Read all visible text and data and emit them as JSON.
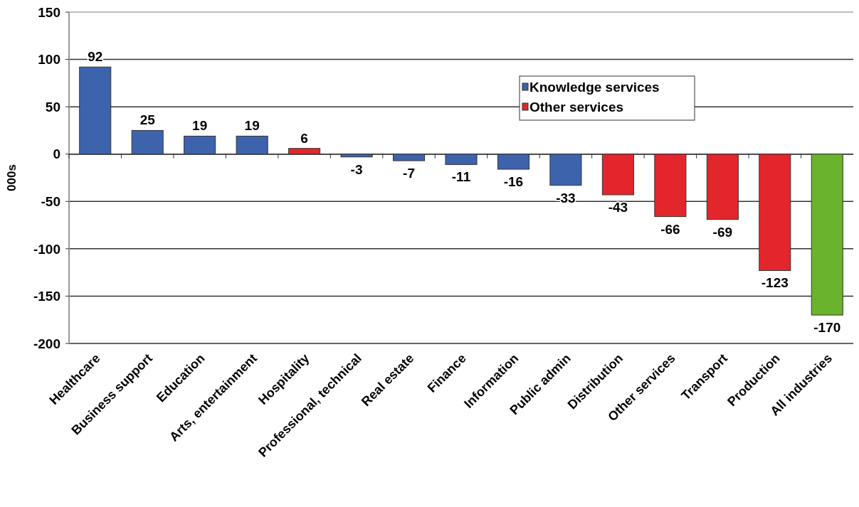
{
  "chart_data": {
    "type": "bar",
    "ylabel": "000s",
    "categories": [
      "Healthcare",
      "Business support",
      "Education",
      "Arts, entertainment",
      "Hospitality",
      "Professional, technical",
      "Real estate",
      "Finance",
      "Information",
      "Public admin",
      "Distribution",
      "Other services",
      "Transport",
      "Production",
      "All industries"
    ],
    "series": [
      {
        "name": "Knowledge services",
        "color": "#3e63ad",
        "values": [
          92,
          25,
          19,
          19,
          null,
          -3,
          -7,
          -11,
          -16,
          -33,
          null,
          null,
          null,
          null,
          null
        ]
      },
      {
        "name": "Other services",
        "color": "#e3262b",
        "values": [
          null,
          null,
          null,
          null,
          6,
          null,
          null,
          null,
          null,
          null,
          -43,
          -66,
          -69,
          -123,
          null
        ]
      },
      {
        "color": "#6ab42d",
        "values": [
          null,
          null,
          null,
          null,
          null,
          null,
          null,
          null,
          null,
          null,
          null,
          null,
          null,
          null,
          -170
        ]
      }
    ],
    "data_labels": true,
    "ylim": [
      -200,
      150
    ],
    "yticks": [
      -200,
      -150,
      -100,
      -50,
      0,
      50,
      100,
      150
    ],
    "grid": "y",
    "legend": "top right"
  }
}
